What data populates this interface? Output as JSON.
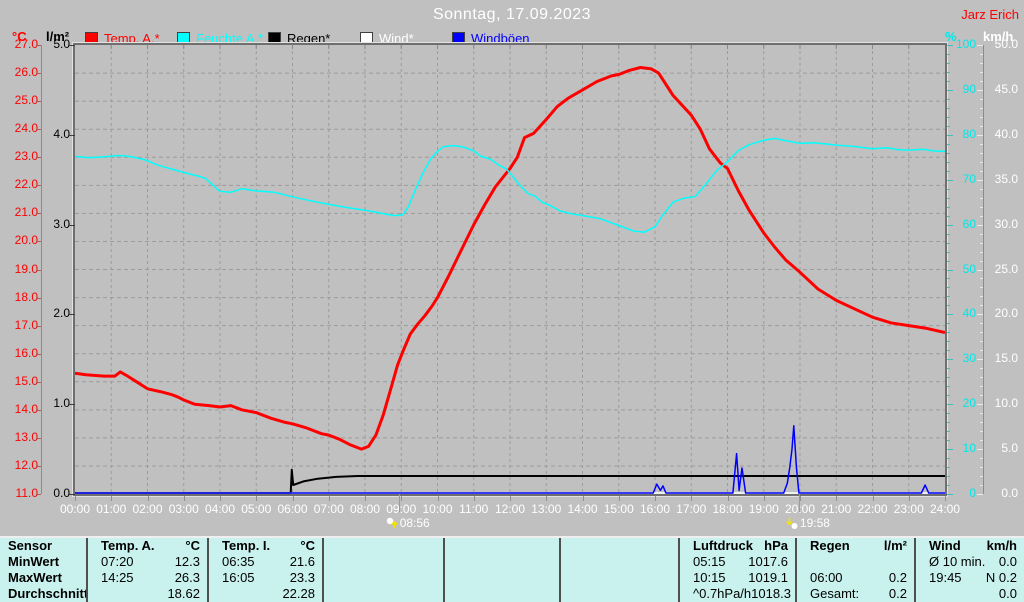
{
  "header": {
    "title": "Sonntag, 17.09.2023",
    "watermark": "Jarz Erich"
  },
  "axes": {
    "temp": {
      "unit": "°C",
      "color": "#ff0000",
      "min": 11,
      "max": 27,
      "ticks": [
        "27.0",
        "26.0",
        "25.0",
        "24.0",
        "23.0",
        "22.0",
        "21.0",
        "20.0",
        "19.0",
        "18.0",
        "17.0",
        "16.0",
        "15.0",
        "14.0",
        "13.0",
        "12.0",
        "11.0"
      ]
    },
    "rain": {
      "unit": "l/m²",
      "color": "#000000",
      "min": 0,
      "max": 5,
      "ticks": [
        "5.0",
        "4.0",
        "3.0",
        "2.0",
        "1.0",
        "0.0"
      ]
    },
    "humidity": {
      "unit": "%",
      "color": "#00e8e8",
      "min": 0,
      "max": 100,
      "ticks": [
        "100",
        "90",
        "80",
        "70",
        "60",
        "50",
        "40",
        "30",
        "20",
        "10",
        "0"
      ]
    },
    "wind": {
      "unit": "km/h",
      "color": "#ffffff",
      "min": 0,
      "max": 50,
      "ticks": [
        "50.0",
        "45.0",
        "40.0",
        "35.0",
        "30.0",
        "25.0",
        "20.0",
        "15.0",
        "10.0",
        "5.0",
        "0.0"
      ]
    },
    "time": {
      "ticks": [
        "00:00",
        "01:00",
        "02:00",
        "03:00",
        "04:00",
        "05:00",
        "06:00",
        "07:00",
        "08:00",
        "09:00",
        "10:00",
        "11:00",
        "12:00",
        "13:00",
        "14:00",
        "15:00",
        "16:00",
        "17:00",
        "18:00",
        "19:00",
        "20:00",
        "21:00",
        "22:00",
        "23:00",
        "24:00"
      ]
    }
  },
  "markers": [
    {
      "icon": "sunrise-icon",
      "time": "08:56",
      "hour": 8.93
    },
    {
      "icon": "sunset-icon",
      "time": "19:58",
      "hour": 19.97
    }
  ],
  "chart_data": {
    "type": "line",
    "title": "Sonntag, 17.09.2023",
    "x_axis": {
      "label": "time of day",
      "range_hours": [
        0,
        24
      ],
      "tick_interval_hours": 1,
      "grid": "dashed hourly"
    },
    "y_axes_note": "left: °C 11-27 and rain l/m² 0-5; right: humidity % 0-100 and wind km/h 0-50; dashed grid every 1 °C",
    "series": [
      {
        "name": "Temp. A.*",
        "color": "#ff0000",
        "axis": "temp",
        "width": 3,
        "points": [
          [
            0,
            15.3
          ],
          [
            0.3,
            15.25
          ],
          [
            0.8,
            15.2
          ],
          [
            1.1,
            15.2
          ],
          [
            1.25,
            15.35
          ],
          [
            1.45,
            15.2
          ],
          [
            1.7,
            15.0
          ],
          [
            2,
            14.75
          ],
          [
            2.35,
            14.65
          ],
          [
            2.65,
            14.55
          ],
          [
            2.85,
            14.45
          ],
          [
            3,
            14.35
          ],
          [
            3.3,
            14.2
          ],
          [
            3.7,
            14.15
          ],
          [
            4,
            14.1
          ],
          [
            4.3,
            14.15
          ],
          [
            4.6,
            14.0
          ],
          [
            5,
            13.9
          ],
          [
            5.4,
            13.7
          ],
          [
            5.8,
            13.55
          ],
          [
            6,
            13.5
          ],
          [
            6.4,
            13.35
          ],
          [
            6.8,
            13.15
          ],
          [
            7,
            13.1
          ],
          [
            7.3,
            12.95
          ],
          [
            7.6,
            12.75
          ],
          [
            7.9,
            12.6
          ],
          [
            8.1,
            12.7
          ],
          [
            8.3,
            13.1
          ],
          [
            8.5,
            13.8
          ],
          [
            8.7,
            14.7
          ],
          [
            8.9,
            15.6
          ],
          [
            9.05,
            16.1
          ],
          [
            9.25,
            16.7
          ],
          [
            9.45,
            17.05
          ],
          [
            9.65,
            17.35
          ],
          [
            9.85,
            17.7
          ],
          [
            10,
            18.0
          ],
          [
            10.3,
            18.75
          ],
          [
            10.6,
            19.55
          ],
          [
            11,
            20.6
          ],
          [
            11.3,
            21.3
          ],
          [
            11.6,
            21.95
          ],
          [
            12,
            22.6
          ],
          [
            12.2,
            23.0
          ],
          [
            12.4,
            23.7
          ],
          [
            12.65,
            23.85
          ],
          [
            13,
            24.35
          ],
          [
            13.3,
            24.8
          ],
          [
            13.6,
            25.1
          ],
          [
            14,
            25.4
          ],
          [
            14.4,
            25.7
          ],
          [
            14.8,
            25.9
          ],
          [
            15,
            25.95
          ],
          [
            15.3,
            26.1
          ],
          [
            15.6,
            26.2
          ],
          [
            15.9,
            26.15
          ],
          [
            16.1,
            26.0
          ],
          [
            16.5,
            25.2
          ],
          [
            17,
            24.5
          ],
          [
            17.25,
            24.0
          ],
          [
            17.5,
            23.3
          ],
          [
            17.8,
            22.8
          ],
          [
            18,
            22.6
          ],
          [
            18.3,
            21.8
          ],
          [
            18.6,
            21.1
          ],
          [
            19,
            20.3
          ],
          [
            19.3,
            19.8
          ],
          [
            19.6,
            19.35
          ],
          [
            20,
            18.9
          ],
          [
            20.5,
            18.3
          ],
          [
            21,
            17.9
          ],
          [
            21.5,
            17.6
          ],
          [
            22,
            17.3
          ],
          [
            22.5,
            17.1
          ],
          [
            23,
            17.0
          ],
          [
            23.5,
            16.9
          ],
          [
            24,
            16.75
          ]
        ]
      },
      {
        "name": "Feuchte A.*",
        "color": "#00ffff",
        "axis": "humidity",
        "width": 1.5,
        "points": [
          [
            0,
            75.2
          ],
          [
            0.4,
            74.9
          ],
          [
            0.8,
            75.1
          ],
          [
            1.2,
            75.4
          ],
          [
            1.5,
            75.2
          ],
          [
            1.9,
            74.5
          ],
          [
            2.3,
            73.2
          ],
          [
            2.7,
            72.3
          ],
          [
            3,
            71.6
          ],
          [
            3.4,
            70.8
          ],
          [
            3.6,
            70.3
          ],
          [
            3.8,
            68.8
          ],
          [
            4,
            67.4
          ],
          [
            4.3,
            67.2
          ],
          [
            4.6,
            68.0
          ],
          [
            5,
            67.5
          ],
          [
            5.5,
            67.2
          ],
          [
            6,
            66.2
          ],
          [
            6.5,
            65.3
          ],
          [
            7,
            64.5
          ],
          [
            7.5,
            63.8
          ],
          [
            8,
            63.2
          ],
          [
            8.4,
            62.6
          ],
          [
            8.8,
            62.0
          ],
          [
            9.05,
            62.2
          ],
          [
            9.2,
            64.0
          ],
          [
            9.4,
            68.0
          ],
          [
            9.6,
            71.5
          ],
          [
            9.8,
            74.5
          ],
          [
            10,
            76.3
          ],
          [
            10.15,
            77.3
          ],
          [
            10.4,
            77.6
          ],
          [
            10.65,
            77.4
          ],
          [
            10.85,
            76.9
          ],
          [
            11,
            76.4
          ],
          [
            11.2,
            75.2
          ],
          [
            11.45,
            74.6
          ],
          [
            11.7,
            73.2
          ],
          [
            11.9,
            72.4
          ],
          [
            12.1,
            70.5
          ],
          [
            12.3,
            68.5
          ],
          [
            12.5,
            66.9
          ],
          [
            12.7,
            66.3
          ],
          [
            12.9,
            64.9
          ],
          [
            13.1,
            64.3
          ],
          [
            13.4,
            63.0
          ],
          [
            13.7,
            62.4
          ],
          [
            14,
            62.0
          ],
          [
            14.5,
            61.3
          ],
          [
            15,
            59.8
          ],
          [
            15.4,
            58.6
          ],
          [
            15.7,
            58.3
          ],
          [
            16,
            59.5
          ],
          [
            16.2,
            62.0
          ],
          [
            16.5,
            65.0
          ],
          [
            16.8,
            65.9
          ],
          [
            17.1,
            66.2
          ],
          [
            17.4,
            69.0
          ],
          [
            17.7,
            72.0
          ],
          [
            18,
            74.0
          ],
          [
            18.3,
            76.5
          ],
          [
            18.6,
            77.8
          ],
          [
            19,
            78.8
          ],
          [
            19.3,
            79.2
          ],
          [
            19.6,
            78.7
          ],
          [
            20,
            78.1
          ],
          [
            20.4,
            78.2
          ],
          [
            20.8,
            77.9
          ],
          [
            21,
            77.7
          ],
          [
            21.5,
            77.4
          ],
          [
            22,
            76.9
          ],
          [
            22.4,
            77.1
          ],
          [
            22.7,
            76.7
          ],
          [
            23,
            76.6
          ],
          [
            23.4,
            76.8
          ],
          [
            23.7,
            76.4
          ],
          [
            24,
            76.3
          ]
        ]
      },
      {
        "name": "Regen*",
        "color": "#000000",
        "axis": "rain",
        "width": 2,
        "points": [
          [
            0,
            0
          ],
          [
            5.95,
            0
          ],
          [
            5.98,
            0.27
          ],
          [
            6.02,
            0.1
          ],
          [
            6.3,
            0.14
          ],
          [
            6.7,
            0.17
          ],
          [
            7.2,
            0.19
          ],
          [
            7.8,
            0.2
          ],
          [
            24,
            0.2
          ]
        ]
      },
      {
        "name": "Wind*",
        "color": "#ffffff",
        "axis": "wind",
        "width": 1.5,
        "points": [
          [
            0,
            0
          ],
          [
            24,
            0
          ]
        ]
      },
      {
        "name": "Windböen",
        "color": "#0000ff",
        "axis": "wind",
        "width": 1.5,
        "points": [
          [
            0,
            0
          ],
          [
            15.95,
            0
          ],
          [
            16.05,
            1.1
          ],
          [
            16.15,
            0.4
          ],
          [
            16.22,
            0.9
          ],
          [
            16.3,
            0
          ],
          [
            18.15,
            0
          ],
          [
            18.25,
            4.5
          ],
          [
            18.32,
            0.4
          ],
          [
            18.4,
            2.9
          ],
          [
            18.5,
            0
          ],
          [
            19.55,
            0
          ],
          [
            19.65,
            1.2
          ],
          [
            19.72,
            3.0
          ],
          [
            19.78,
            5.0
          ],
          [
            19.83,
            7.6
          ],
          [
            19.9,
            3.0
          ],
          [
            19.97,
            0
          ],
          [
            23.35,
            0
          ],
          [
            23.45,
            1.0
          ],
          [
            23.55,
            0
          ],
          [
            24,
            0
          ]
        ]
      }
    ]
  },
  "table": {
    "row_labels": [
      "Sensor",
      "MinWert",
      "MaxWert",
      "Durchschnitt"
    ],
    "columns": [
      {
        "name": "Temp. A.",
        "unit": "°C",
        "rows": [
          [
            "07:20",
            "12.3"
          ],
          [
            "14:25",
            "26.3"
          ],
          [
            "",
            "18.62"
          ]
        ]
      },
      {
        "name": "Temp. I.",
        "unit": "°C",
        "rows": [
          [
            "06:35",
            "21.6"
          ],
          [
            "16:05",
            "23.3"
          ],
          [
            "",
            "22.28"
          ]
        ]
      },
      {
        "name": "",
        "unit": "",
        "rows": [
          [
            "",
            ""
          ],
          [
            "",
            ""
          ],
          [
            "",
            ""
          ]
        ]
      },
      {
        "name": "",
        "unit": "",
        "rows": [
          [
            "",
            ""
          ],
          [
            "",
            ""
          ],
          [
            "",
            ""
          ]
        ]
      },
      {
        "name": "",
        "unit": "",
        "rows": [
          [
            "",
            ""
          ],
          [
            "",
            ""
          ],
          [
            "",
            ""
          ]
        ]
      },
      {
        "name": "Luftdruck",
        "unit": "hPa",
        "rows": [
          [
            "05:15",
            "1017.6"
          ],
          [
            "10:15",
            "1019.1"
          ],
          [
            "^0.7hPa/h",
            "1018.3"
          ]
        ]
      },
      {
        "name": "Regen",
        "unit": "l/m²",
        "rows": [
          [
            "",
            ""
          ],
          [
            "06:00",
            "0.2"
          ],
          [
            "Gesamt:",
            "0.2"
          ]
        ]
      },
      {
        "name": "Wind",
        "unit": "km/h",
        "rows": [
          [
            "Ø 10 min.",
            "0.0"
          ],
          [
            "19:45",
            "N 0.2"
          ],
          [
            "",
            "0.0"
          ]
        ]
      }
    ]
  }
}
